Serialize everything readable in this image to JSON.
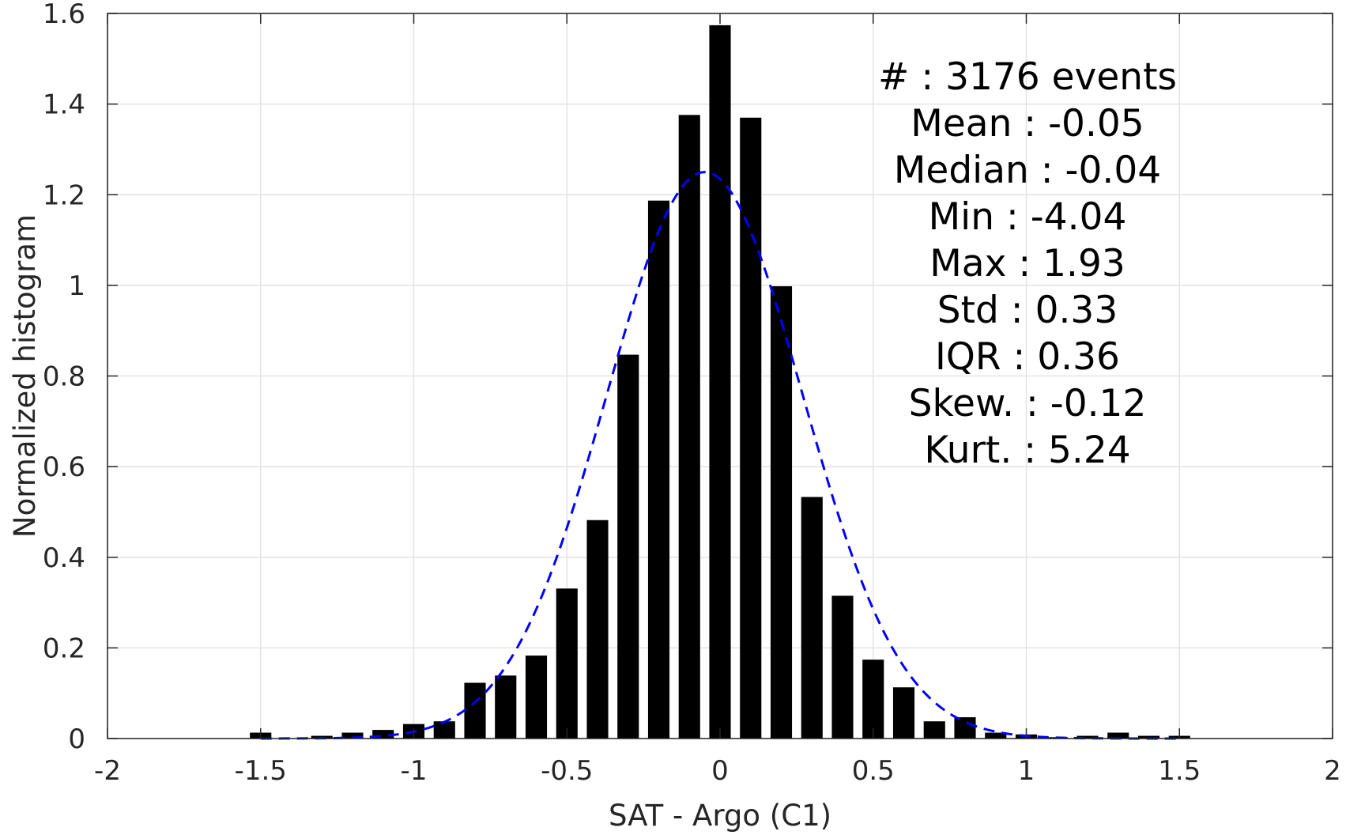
{
  "chart_data": {
    "type": "bar",
    "xlabel": "SAT - Argo (C1)",
    "ylabel": "Normalized histogram",
    "xlim": [
      -2,
      2
    ],
    "ylim": [
      0,
      1.6
    ],
    "grid": true,
    "xticks": [
      -2,
      -1.5,
      -1,
      -0.5,
      0,
      0.5,
      1,
      1.5,
      2
    ],
    "xtick_labels": [
      "-2",
      "-1.5",
      "-1",
      "-0.5",
      "0",
      "0.5",
      "1",
      "1.5",
      "2"
    ],
    "yticks": [
      0,
      0.2,
      0.4,
      0.6,
      0.8,
      1,
      1.2,
      1.4,
      1.6
    ],
    "ytick_labels": [
      "0",
      "0.2",
      "0.4",
      "0.6",
      "0.8",
      "1",
      "1.2",
      "1.4",
      "1.6"
    ],
    "bar_width": 0.07,
    "series": [
      {
        "x": [
          -1.5,
          -1.4,
          -1.3,
          -1.2,
          -1.1,
          -1.0,
          -0.9,
          -0.8,
          -0.7,
          -0.6,
          -0.5,
          -0.4,
          -0.3,
          -0.2,
          -0.1,
          0.0,
          0.1,
          0.2,
          0.3,
          0.4,
          0.5,
          0.6,
          0.7,
          0.8,
          0.9,
          1.0,
          1.1,
          1.2,
          1.3,
          1.4,
          1.5
        ],
        "values": [
          0.013,
          0.0,
          0.006,
          0.013,
          0.019,
          0.032,
          0.038,
          0.123,
          0.139,
          0.183,
          0.331,
          0.482,
          0.847,
          1.187,
          1.376,
          1.574,
          1.37,
          0.998,
          0.533,
          0.315,
          0.174,
          0.113,
          0.038,
          0.047,
          0.013,
          0.009,
          0.003,
          0.006,
          0.013,
          0.006,
          0.006
        ],
        "color": "#000000"
      }
    ],
    "fit": {
      "type": "gaussian",
      "mean": -0.05,
      "std": 0.32,
      "peak": 1.25,
      "x_range": [
        -1.5,
        1.5
      ],
      "color": "#0000ff",
      "style": "dashed"
    },
    "annotations": [
      {
        "label": "#",
        "sep": "  : ",
        "value": "3176 events"
      },
      {
        "label": "Mean",
        "sep": " : ",
        "value": "-0.05"
      },
      {
        "label": "Median",
        "sep": " : ",
        "value": "-0.04"
      },
      {
        "label": "Min",
        "sep": " : ",
        "value": "-4.04"
      },
      {
        "label": "Max",
        "sep": " : ",
        "value": "1.93"
      },
      {
        "label": "Std",
        "sep": " : ",
        "value": "0.33"
      },
      {
        "label": "IQR",
        "sep": " : ",
        "value": "0.36"
      },
      {
        "label": "Skew.",
        "sep": " : ",
        "value": "-0.12"
      },
      {
        "label": "Kurt.",
        "sep": " : ",
        "value": "5.24"
      }
    ]
  }
}
